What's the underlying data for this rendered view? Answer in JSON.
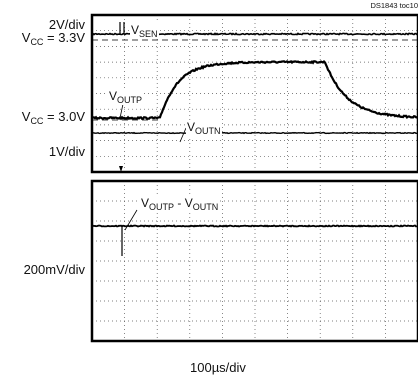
{
  "chart_data": {
    "type": "line",
    "doc_id": "DS1843 toc10",
    "x_scale_label": "100µs/div",
    "grid": true,
    "grid_divisions": {
      "x": 10,
      "y_upper": 10,
      "y_lower": 8
    },
    "upper_panel": {
      "left_labels": [
        "2V/div",
        "V",
        "CC",
        " = 3.3V",
        "V",
        "CC",
        " = 3.0V",
        "1V/div"
      ],
      "series": [
        {
          "name": "V",
          "subscript": "SEN"
        },
        {
          "name": "V",
          "subscript": "OUTP"
        },
        {
          "name": "V",
          "subscript": "OUTN"
        }
      ]
    },
    "lower_panel": {
      "left_labels": [
        "200mV/div"
      ],
      "series": [
        {
          "name": "V",
          "subscript": "OUTP",
          "mid": " - V",
          "subscript2": "OUTN"
        }
      ]
    }
  }
}
